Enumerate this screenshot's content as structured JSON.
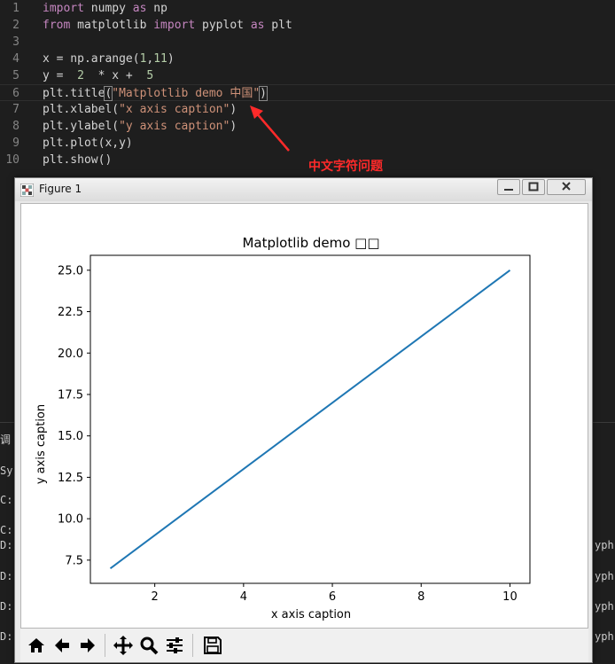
{
  "editor": {
    "line_numbers": [
      "1",
      "2",
      "3",
      "4",
      "5",
      "6",
      "7",
      "8",
      "9",
      "10"
    ],
    "lines": {
      "l1": {
        "kw1": "import",
        "t1": " numpy ",
        "kw2": "as",
        "t2": " np"
      },
      "l2": {
        "kw1": "from",
        "t1": " matplotlib ",
        "kw2": "import",
        "t2": " pyplot ",
        "kw3": "as",
        "t3": " plt"
      },
      "l4": {
        "t1": "x = np.arange(",
        "n1": "1",
        "t2": ",",
        "n2": "11",
        "t3": ")"
      },
      "l5": {
        "t1": "y =  ",
        "n1": "2",
        "t2": "  * x +  ",
        "n2": "5"
      },
      "l6": {
        "t1": "plt.title",
        "p1": "(",
        "s1": "\"Matplotlib demo 中国\"",
        "p2": ")"
      },
      "l7": {
        "t1": "plt.xlabel(",
        "s1": "\"x axis caption\"",
        "t2": ")"
      },
      "l8": {
        "t1": "plt.ylabel(",
        "s1": "\"y axis caption\"",
        "t2": ")"
      },
      "l9": {
        "t1": "plt.plot(x,y)"
      },
      "l10": {
        "t1": "plt.show()"
      }
    }
  },
  "annotation": {
    "text": "中文字符问题",
    "color": "#ff2a2a"
  },
  "terminal": {
    "left": [
      "调",
      "Sy",
      "C:",
      "C:",
      "D:",
      "D:",
      "D:",
      "D:"
    ],
    "right": [
      "yph",
      "yph",
      "yph",
      "yph"
    ]
  },
  "figure_window": {
    "title": "Figure 1",
    "toolbar_icons": [
      "home-icon",
      "back-arrow-icon",
      "forward-arrow-icon",
      "pan-icon",
      "zoom-icon",
      "configure-subplots-icon",
      "save-icon"
    ]
  },
  "chart_data": {
    "type": "line",
    "title": "Matplotlib demo □□",
    "xlabel": "x axis caption",
    "ylabel": "y axis caption",
    "x": [
      1,
      2,
      3,
      4,
      5,
      6,
      7,
      8,
      9,
      10
    ],
    "series": [
      {
        "values": [
          7,
          9,
          11,
          13,
          15,
          17,
          19,
          21,
          23,
          25
        ],
        "color": "#1f77b4"
      }
    ],
    "xlim": [
      0.55,
      10.45
    ],
    "ylim": [
      6.1,
      25.9
    ],
    "xticks": [
      "2",
      "4",
      "6",
      "8",
      "10"
    ],
    "xtick_values": [
      2,
      4,
      6,
      8,
      10
    ],
    "yticks": [
      "7.5",
      "10.0",
      "12.5",
      "15.0",
      "17.5",
      "20.0",
      "22.5",
      "25.0"
    ],
    "ytick_values": [
      7.5,
      10,
      12.5,
      15,
      17.5,
      20,
      22.5,
      25
    ],
    "grid": false
  }
}
